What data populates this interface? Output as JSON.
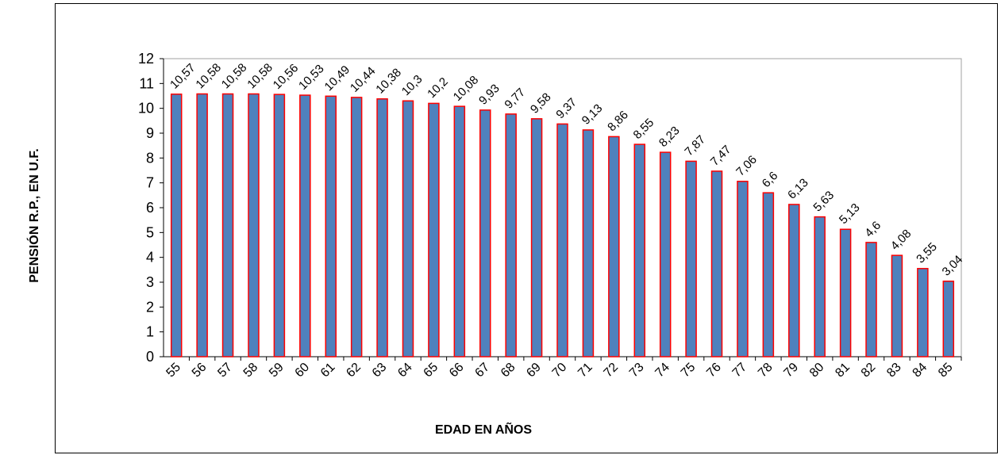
{
  "chart_data": {
    "type": "bar",
    "xlabel": "EDAD  EN AÑOS",
    "ylabel": "PENSIÓN R.P., EN U.F.",
    "ylim": [
      0,
      12
    ],
    "yticks": [
      "0",
      "1",
      "2",
      "3",
      "4",
      "5",
      "6",
      "7",
      "8",
      "9",
      "10",
      "11",
      "12"
    ],
    "categories": [
      "55",
      "56",
      "57",
      "58",
      "59",
      "60",
      "61",
      "62",
      "63",
      "64",
      "65",
      "66",
      "67",
      "68",
      "69",
      "70",
      "71",
      "72",
      "73",
      "74",
      "75",
      "76",
      "77",
      "78",
      "79",
      "80",
      "81",
      "82",
      "83",
      "84",
      "85"
    ],
    "values": [
      10.57,
      10.58,
      10.58,
      10.58,
      10.56,
      10.53,
      10.49,
      10.44,
      10.38,
      10.3,
      10.2,
      10.08,
      9.93,
      9.77,
      9.58,
      9.37,
      9.13,
      8.86,
      8.55,
      8.23,
      7.87,
      7.47,
      7.06,
      6.6,
      6.13,
      5.63,
      5.13,
      4.6,
      4.08,
      3.55,
      3.04
    ],
    "data_labels": [
      "10,57",
      "10,58",
      "10,58",
      "10,58",
      "10,56",
      "10,53",
      "10,49",
      "10,44",
      "10,38",
      "10,3",
      "10,2",
      "10,08",
      "9,93",
      "9,77",
      "9,58",
      "9,37",
      "9,13",
      "8,86",
      "8,55",
      "8,23",
      "7,87",
      "7,47",
      "7,06",
      "6,6",
      "6,13",
      "5,63",
      "5,13",
      "4,6",
      "4,08",
      "3,55",
      "3,04"
    ],
    "bar_fill": "#4f81bd",
    "bar_stroke": "#ff0000",
    "grid": false,
    "legend": "none"
  }
}
